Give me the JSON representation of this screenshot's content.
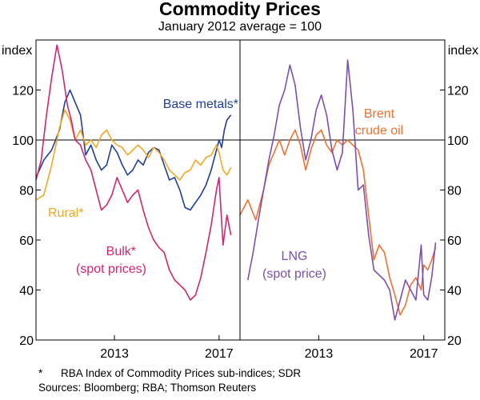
{
  "title": "Commodity Prices",
  "subtitle": "January 2012 average = 100",
  "footnote_marker": "*",
  "footnote": "RBA Index of Commodity Prices sub-indices; SDR",
  "sources": "Sources: Bloomberg; RBA; Thomson Reuters",
  "chart_data": [
    {
      "type": "line",
      "panel": "left",
      "ylabel": "index",
      "ylim": [
        20,
        140
      ],
      "yticks": [
        20,
        40,
        60,
        80,
        100,
        120
      ],
      "xlim": [
        2010.0,
        2017.8
      ],
      "xticks": [
        {
          "value": 2013.0,
          "label": "2013"
        },
        {
          "value": 2017.0,
          "label": "2017"
        }
      ],
      "reference_line": 100,
      "series": [
        {
          "name": "Base metals*",
          "label": "Base metals*",
          "color": "#1f3f99",
          "x": [
            2010.0,
            2010.3,
            2010.6,
            2010.9,
            2011.1,
            2011.3,
            2011.5,
            2011.7,
            2011.9,
            2012.1,
            2012.3,
            2012.5,
            2012.7,
            2012.9,
            2013.1,
            2013.3,
            2013.5,
            2013.7,
            2013.9,
            2014.1,
            2014.3,
            2014.5,
            2014.7,
            2014.9,
            2015.1,
            2015.3,
            2015.5,
            2015.7,
            2015.9,
            2016.1,
            2016.3,
            2016.5,
            2016.7,
            2016.9,
            2017.0,
            2017.1,
            2017.2,
            2017.3,
            2017.45
          ],
          "y": [
            85,
            92,
            96,
            104,
            115,
            120,
            115,
            110,
            94,
            98,
            92,
            88,
            90,
            98,
            95,
            90,
            86,
            88,
            92,
            90,
            95,
            97,
            96,
            90,
            84,
            85,
            80,
            73,
            72,
            75,
            78,
            82,
            88,
            96,
            100,
            97,
            104,
            108,
            110
          ]
        },
        {
          "name": "Rural*",
          "label": "Rural*",
          "color": "#f5a623",
          "x": [
            2010.0,
            2010.3,
            2010.6,
            2010.9,
            2011.1,
            2011.3,
            2011.5,
            2011.7,
            2011.9,
            2012.1,
            2012.3,
            2012.5,
            2012.7,
            2012.9,
            2013.1,
            2013.3,
            2013.5,
            2013.7,
            2013.9,
            2014.1,
            2014.3,
            2014.5,
            2014.7,
            2014.9,
            2015.1,
            2015.3,
            2015.5,
            2015.7,
            2015.9,
            2016.1,
            2016.3,
            2016.5,
            2016.7,
            2016.9,
            2017.0,
            2017.15,
            2017.3,
            2017.45
          ],
          "y": [
            76,
            78,
            90,
            105,
            112,
            108,
            100,
            104,
            98,
            100,
            97,
            102,
            104,
            100,
            98,
            97,
            94,
            96,
            98,
            96,
            93,
            97,
            95,
            92,
            88,
            86,
            84,
            87,
            88,
            92,
            90,
            93,
            94,
            98,
            95,
            88,
            86,
            89
          ]
        },
        {
          "name": "Bulk* (spot prices)",
          "label": "Bulk*",
          "label2": "(spot prices)",
          "color": "#d6246c",
          "x": [
            2010.0,
            2010.2,
            2010.4,
            2010.6,
            2010.8,
            2011.0,
            2011.2,
            2011.35,
            2011.5,
            2011.7,
            2011.9,
            2012.1,
            2012.3,
            2012.5,
            2012.7,
            2012.9,
            2013.1,
            2013.3,
            2013.5,
            2013.7,
            2013.9,
            2014.1,
            2014.3,
            2014.5,
            2014.7,
            2014.9,
            2015.1,
            2015.3,
            2015.5,
            2015.7,
            2015.9,
            2016.1,
            2016.3,
            2016.5,
            2016.7,
            2016.9,
            2017.0,
            2017.15,
            2017.3,
            2017.45
          ],
          "y": [
            84,
            92,
            110,
            125,
            138,
            128,
            114,
            108,
            100,
            98,
            92,
            88,
            80,
            72,
            74,
            78,
            85,
            80,
            75,
            78,
            80,
            72,
            65,
            60,
            57,
            55,
            48,
            44,
            42,
            40,
            36,
            38,
            45,
            55,
            66,
            80,
            85,
            58,
            70,
            62
          ]
        }
      ]
    },
    {
      "type": "line",
      "panel": "right",
      "ylabel": "index",
      "ylim": [
        20,
        140
      ],
      "yticks": [
        20,
        40,
        60,
        80,
        100,
        120
      ],
      "xlim": [
        2010.0,
        2017.8
      ],
      "xticks": [
        {
          "value": 2013.0,
          "label": "2013"
        },
        {
          "value": 2017.0,
          "label": "2017"
        }
      ],
      "reference_line": 100,
      "series": [
        {
          "name": "Brent crude oil",
          "label": "Brent",
          "label2": "crude oil",
          "color": "#f07030",
          "x": [
            2010.0,
            2010.3,
            2010.6,
            2010.9,
            2011.1,
            2011.3,
            2011.5,
            2011.7,
            2011.9,
            2012.1,
            2012.3,
            2012.5,
            2012.7,
            2012.9,
            2013.1,
            2013.3,
            2013.5,
            2013.7,
            2013.9,
            2014.1,
            2014.3,
            2014.5,
            2014.7,
            2014.9,
            2015.1,
            2015.3,
            2015.5,
            2015.7,
            2015.9,
            2016.1,
            2016.3,
            2016.5,
            2016.7,
            2016.9,
            2017.0,
            2017.15,
            2017.3,
            2017.45
          ],
          "y": [
            70,
            76,
            68,
            80,
            90,
            95,
            100,
            94,
            100,
            104,
            98,
            88,
            96,
            102,
            104,
            98,
            95,
            100,
            98,
            100,
            98,
            96,
            88,
            70,
            52,
            58,
            55,
            45,
            38,
            30,
            34,
            42,
            45,
            40,
            50,
            48,
            52,
            57
          ]
        },
        {
          "name": "LNG (spot price)",
          "label": "LNG",
          "label2": "(spot price)",
          "color": "#7b4fb0",
          "x": [
            2010.3,
            2010.5,
            2010.7,
            2010.9,
            2011.1,
            2011.3,
            2011.5,
            2011.7,
            2011.9,
            2012.1,
            2012.3,
            2012.5,
            2012.7,
            2012.9,
            2013.1,
            2013.3,
            2013.5,
            2013.7,
            2013.9,
            2014.1,
            2014.3,
            2014.5,
            2014.7,
            2014.9,
            2015.1,
            2015.3,
            2015.5,
            2015.7,
            2015.9,
            2016.1,
            2016.3,
            2016.5,
            2016.7,
            2016.9,
            2017.0,
            2017.15,
            2017.3,
            2017.45
          ],
          "y": [
            44,
            55,
            68,
            80,
            92,
            102,
            114,
            120,
            130,
            122,
            105,
            92,
            100,
            112,
            118,
            110,
            96,
            88,
            95,
            132,
            112,
            80,
            82,
            62,
            48,
            46,
            44,
            40,
            28,
            36,
            44,
            40,
            36,
            58,
            38,
            36,
            45,
            59
          ]
        }
      ]
    }
  ]
}
